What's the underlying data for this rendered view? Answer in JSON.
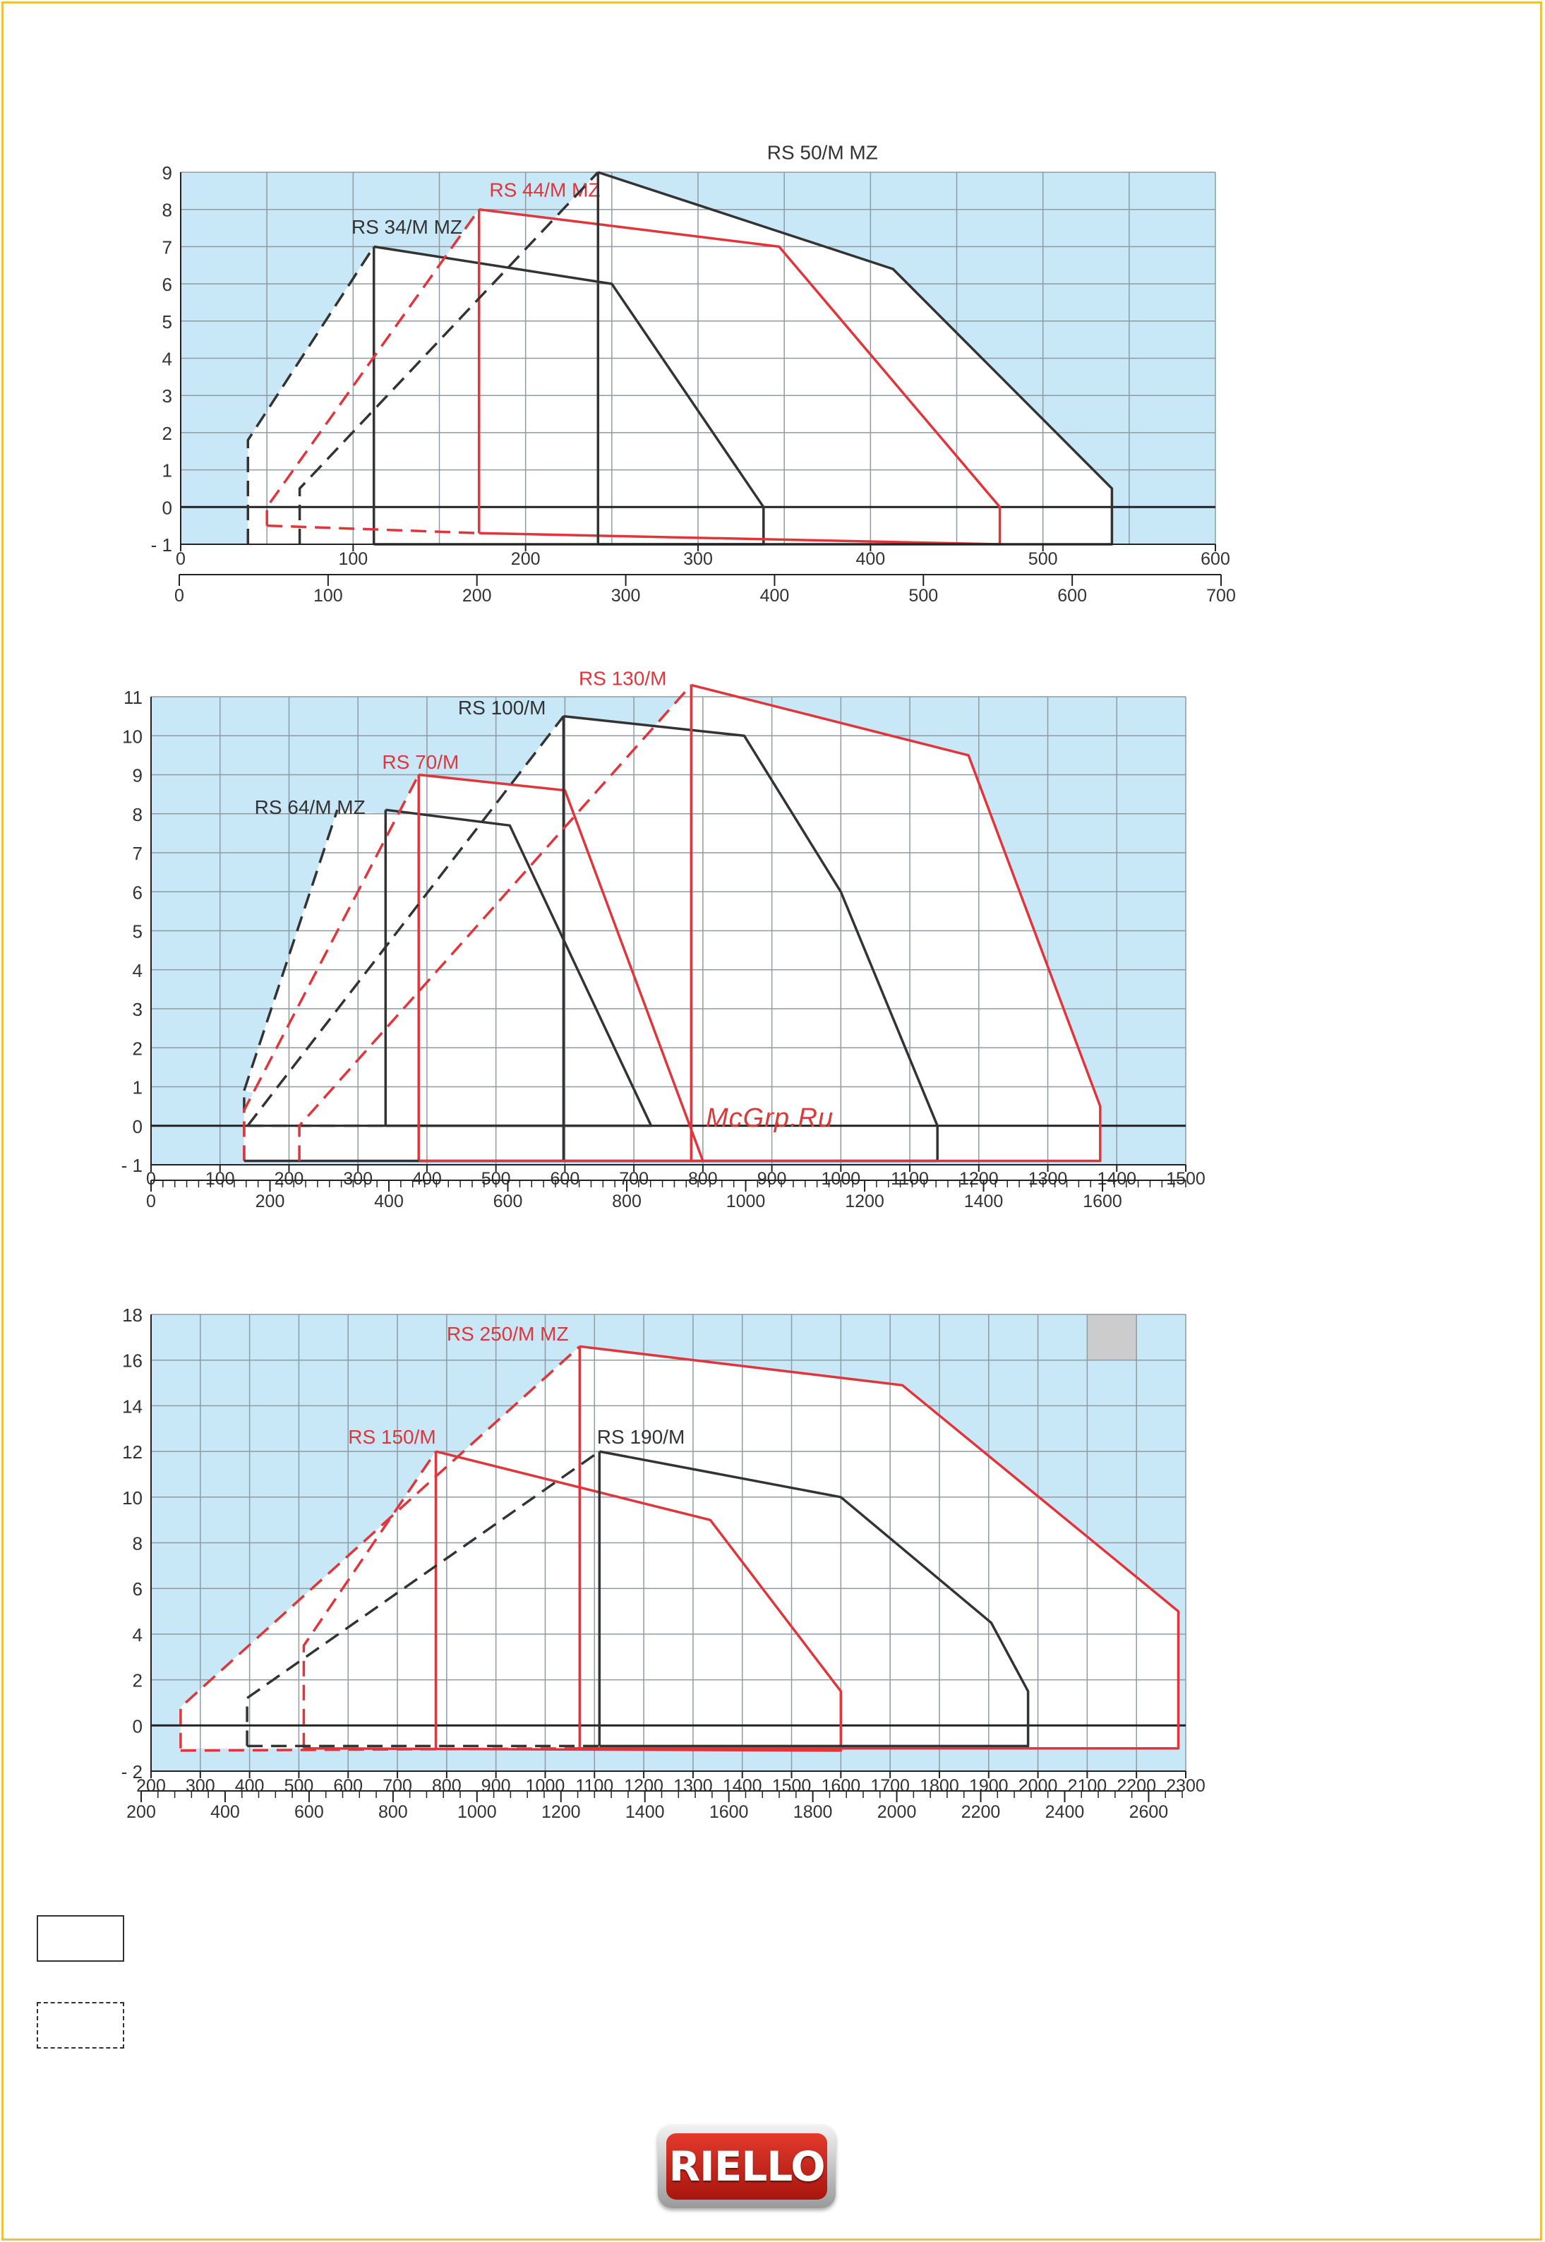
{
  "watermark": "McGrp.Ru",
  "logo_text": "RIELLO",
  "colors": {
    "sky": "#c9e8f7",
    "grid": "#8f9aa2",
    "black_series": "#333333",
    "red_series": "#e0353b"
  },
  "chart_data": [
    {
      "type": "area",
      "ylim": [
        -1,
        9
      ],
      "yticks": [
        -1,
        0,
        1,
        2,
        3,
        4,
        5,
        6,
        7,
        8,
        9
      ],
      "ytick_labels": [
        "- 1",
        "0",
        "1",
        "2",
        "3",
        "4",
        "5",
        "6",
        "7",
        "8",
        "9"
      ],
      "xlim": [
        0,
        600
      ],
      "xticks": [
        0,
        100,
        200,
        300,
        400,
        500,
        600
      ],
      "xtick_labels": [
        "0",
        "100",
        "200",
        "300",
        "400",
        "500",
        "600"
      ],
      "x2lim": [
        0,
        700
      ],
      "x2ticks": [
        0,
        100,
        200,
        300,
        400,
        500,
        600,
        700
      ],
      "x2tick_labels": [
        "0",
        "100",
        "200",
        "300",
        "400",
        "500",
        "600",
        "700"
      ],
      "series": [
        {
          "name": "RS 34/M MZ",
          "color": "black",
          "label_at": [
            99,
            7.35
          ],
          "solid": [
            [
              112,
              7
            ],
            [
              112,
              -1
            ]
          ],
          "top": [
            [
              112,
              7
            ],
            [
              250,
              6
            ],
            [
              338,
              0
            ],
            [
              338,
              -1
            ],
            [
              112,
              -1
            ]
          ],
          "dashed": [
            [
              39,
              -1
            ],
            [
              39,
              1.8
            ],
            [
              112,
              7
            ]
          ]
        },
        {
          "name": "RS 44/M MZ",
          "color": "red",
          "label_at": [
            179,
            8.35
          ],
          "solid": [
            [
              173,
              8
            ],
            [
              173,
              -0.7
            ]
          ],
          "top": [
            [
              173,
              8
            ],
            [
              347,
              7
            ],
            [
              475,
              0
            ],
            [
              475,
              -1
            ],
            [
              173,
              -0.7
            ]
          ],
          "dashed": [
            [
              50,
              -0.5
            ],
            [
              50,
              0
            ],
            [
              173,
              8
            ]
          ],
          "dashed_bottom": [
            [
              50,
              -0.5
            ],
            [
              173,
              -0.7
            ]
          ]
        },
        {
          "name": "RS 50/M MZ",
          "color": "black",
          "label_at": [
            340,
            9.35
          ],
          "solid": [
            [
              242,
              9
            ],
            [
              242,
              -1
            ]
          ],
          "top": [
            [
              242,
              9
            ],
            [
              413,
              6.4
            ],
            [
              540,
              0.5
            ],
            [
              540,
              -1
            ],
            [
              242,
              -1
            ]
          ],
          "dashed": [
            [
              69,
              -1
            ],
            [
              69,
              0.5
            ],
            [
              242,
              9
            ]
          ]
        }
      ]
    },
    {
      "type": "area",
      "ylim": [
        -1,
        11
      ],
      "yticks": [
        -1,
        0,
        1,
        2,
        3,
        4,
        5,
        6,
        7,
        8,
        9,
        10,
        11
      ],
      "ytick_labels": [
        "- 1",
        "0",
        "1",
        "2",
        "3",
        "4",
        "5",
        "6",
        "7",
        "8",
        "9",
        "10",
        "11"
      ],
      "xlim": [
        0,
        1500
      ],
      "xticks": [
        0,
        100,
        200,
        300,
        400,
        500,
        600,
        700,
        800,
        900,
        1000,
        1100,
        1200,
        1300,
        1400,
        1500
      ],
      "xtick_labels": [
        "0",
        "100",
        "200",
        "300",
        "400",
        "500",
        "600",
        "700",
        "800",
        "900",
        "1000",
        "1100",
        "1200",
        "1300",
        "1400",
        "1500"
      ],
      "x2lim": [
        0,
        1740
      ],
      "x2ticks": [
        0,
        200,
        400,
        600,
        800,
        1000,
        1200,
        1400,
        1600
      ],
      "x2tick_labels": [
        "0",
        "200",
        "400",
        "600",
        "800",
        "1000",
        "1200",
        "1400",
        "1600"
      ],
      "series": [
        {
          "name": "RS 64/M MZ",
          "color": "black",
          "label_at": [
            150,
            8.0
          ],
          "solid": [
            [
              340,
              8.1
            ],
            [
              340,
              0
            ]
          ],
          "top": [
            [
              340,
              8.1
            ],
            [
              520,
              7.7
            ],
            [
              725,
              0
            ],
            [
              340,
              0
            ]
          ],
          "dashed": [
            [
              135,
              0.9
            ],
            [
              270,
              8.1
            ]
          ],
          "dashed_bottom": [
            [
              135,
              -0.9
            ],
            [
              135,
              0.9
            ]
          ]
        },
        {
          "name": "RS 70/M",
          "color": "red",
          "label_at": [
            335,
            9.15
          ],
          "solid": [
            [
              388,
              9
            ],
            [
              388,
              -0.9
            ]
          ],
          "top": [
            [
              388,
              9
            ],
            [
              600,
              8.6
            ],
            [
              800,
              -0.9
            ]
          ],
          "dashed": [
            [
              135,
              -0.9
            ],
            [
              135,
              0.4
            ],
            [
              388,
              9
            ]
          ]
        },
        {
          "name": "RS 100/M",
          "color": "black",
          "label_at": [
            445,
            10.55
          ],
          "solid": [
            [
              598,
              10.5
            ],
            [
              598,
              -0.9
            ]
          ],
          "top": [
            [
              598,
              10.5
            ],
            [
              860,
              10
            ],
            [
              1000,
              6
            ],
            [
              1140,
              0
            ],
            [
              1140,
              -0.9
            ],
            [
              135,
              -0.9
            ]
          ],
          "dashed": [
            [
              140,
              0
            ],
            [
              598,
              10.5
            ]
          ],
          "dashed_bottom": [
            [
              140,
              0
            ],
            [
              340,
              0
            ]
          ]
        },
        {
          "name": "RS 130/M",
          "color": "red",
          "label_at": [
            620,
            11.3
          ],
          "solid": [
            [
              783,
              11.3
            ],
            [
              783,
              -0.9
            ]
          ],
          "top": [
            [
              783,
              11.3
            ],
            [
              1185,
              9.5
            ],
            [
              1376,
              0.5
            ],
            [
              1376,
              -0.9
            ],
            [
              388,
              -0.9
            ]
          ],
          "dashed": [
            [
              215,
              -0.9
            ],
            [
              215,
              0
            ],
            [
              783,
              11.3
            ]
          ]
        }
      ]
    },
    {
      "type": "area",
      "ylim": [
        -2,
        18
      ],
      "yticks": [
        -2,
        0,
        2,
        4,
        6,
        8,
        10,
        12,
        14,
        16,
        18
      ],
      "ytick_labels": [
        "- 2",
        "0",
        "2",
        "4",
        "6",
        "8",
        "10",
        "12",
        "14",
        "16",
        "18"
      ],
      "xlim": [
        200,
        2300
      ],
      "xticks": [
        200,
        300,
        400,
        500,
        600,
        700,
        800,
        900,
        1000,
        1100,
        1200,
        1300,
        1400,
        1500,
        1600,
        1700,
        1800,
        1900,
        2000,
        2100,
        2200,
        2300
      ],
      "xtick_labels": [
        "200",
        "300",
        "400",
        "500",
        "600",
        "700",
        "800",
        "900",
        "1000",
        "1100",
        "1200",
        "1300",
        "1400",
        "1500",
        "1600",
        "1700",
        "1800",
        "1900",
        "2000",
        "2100",
        "2200",
        "2300"
      ],
      "x2lim": [
        200,
        2680
      ],
      "x2ticks": [
        200,
        400,
        600,
        800,
        1000,
        1200,
        1400,
        1600,
        1800,
        2000,
        2200,
        2400,
        2600
      ],
      "x2tick_labels": [
        "200",
        "400",
        "600",
        "800",
        "1000",
        "1200",
        "1400",
        "1600",
        "1800",
        "2000",
        "2200",
        "2400",
        "2600"
      ],
      "series": [
        {
          "name": "RS 150/M",
          "color": "red",
          "label_at": [
            600,
            12.35
          ],
          "solid": [
            [
              778,
              12
            ],
            [
              778,
              -1
            ]
          ],
          "top": [
            [
              778,
              12
            ],
            [
              1335,
              9
            ],
            [
              1600,
              1.5
            ],
            [
              1600,
              -1.1
            ],
            [
              510,
              -1
            ]
          ],
          "dashed": [
            [
              510,
              -1
            ],
            [
              510,
              3.5
            ],
            [
              778,
              12
            ]
          ]
        },
        {
          "name": "RS 190/M",
          "color": "black",
          "label_at": [
            1105,
            12.35
          ],
          "solid": [
            [
              1110,
              12
            ],
            [
              1110,
              -0.9
            ]
          ],
          "top": [
            [
              1110,
              12
            ],
            [
              1600,
              10
            ],
            [
              1905,
              4.5
            ],
            [
              1980,
              1.5
            ],
            [
              1980,
              -0.9
            ],
            [
              1110,
              -0.9
            ]
          ],
          "dashed": [
            [
              395,
              -0.9
            ],
            [
              395,
              1.2
            ],
            [
              1110,
              12
            ]
          ],
          "dashed_bottom": [
            [
              395,
              -0.9
            ],
            [
              1110,
              -0.9
            ]
          ]
        },
        {
          "name": "RS 250/M MZ",
          "color": "red",
          "label_at": [
            800,
            16.85
          ],
          "solid": [
            [
              1070,
              16.6
            ],
            [
              1070,
              -1
            ]
          ],
          "top": [
            [
              1070,
              16.6
            ],
            [
              1725,
              14.9
            ],
            [
              2285,
              5
            ],
            [
              2285,
              -1
            ],
            [
              1070,
              -1
            ]
          ],
          "dashed": [
            [
              260,
              -1
            ],
            [
              260,
              0.8
            ],
            [
              1070,
              16.6
            ]
          ],
          "dashed_bottom": [
            [
              260,
              -1.1
            ],
            [
              1070,
              -1
            ]
          ]
        }
      ],
      "grey_cell": [
        2100,
        2200
      ]
    }
  ]
}
